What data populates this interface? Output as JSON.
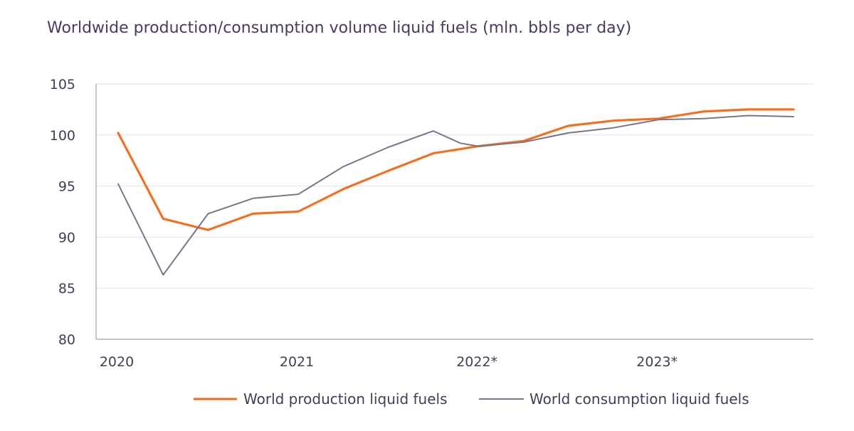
{
  "chart_data": {
    "type": "line",
    "title": "Worldwide production/consumption volume liquid fuels (mln. bbls per day)",
    "xlabel": "",
    "ylabel": "",
    "ylim": [
      80,
      105
    ],
    "yticks": [
      "80",
      "85",
      "90",
      "95",
      "100",
      "105"
    ],
    "xticks": [
      {
        "label": "2020",
        "x": 0
      },
      {
        "label": "2021",
        "x": 4
      },
      {
        "label": "2022*",
        "x": 8
      },
      {
        "label": "2023*",
        "x": 12
      }
    ],
    "xlim": [
      0,
      15
    ],
    "grid": true,
    "legend_position": "bottom",
    "series": [
      {
        "name": "World production liquid fuels",
        "color": "#f07024",
        "x": [
          0,
          1,
          2,
          3,
          4,
          5,
          6,
          7,
          8,
          9,
          10,
          11,
          12,
          13,
          14,
          15
        ],
        "values": [
          100.2,
          91.8,
          90.7,
          92.3,
          92.5,
          94.7,
          96.5,
          98.2,
          98.9,
          99.4,
          100.9,
          101.4,
          101.6,
          102.3,
          102.5,
          102.5
        ]
      },
      {
        "name": "World consumption liquid fuels",
        "color": "#7a7588",
        "x": [
          0,
          1,
          2,
          3,
          4,
          5,
          6,
          7,
          7.6,
          8,
          9,
          10,
          11,
          12,
          13,
          14,
          15
        ],
        "values": [
          95.2,
          86.3,
          92.3,
          93.8,
          94.2,
          96.9,
          98.8,
          100.4,
          99.2,
          98.9,
          99.3,
          100.2,
          100.7,
          101.5,
          101.6,
          101.9,
          101.8
        ]
      }
    ]
  }
}
